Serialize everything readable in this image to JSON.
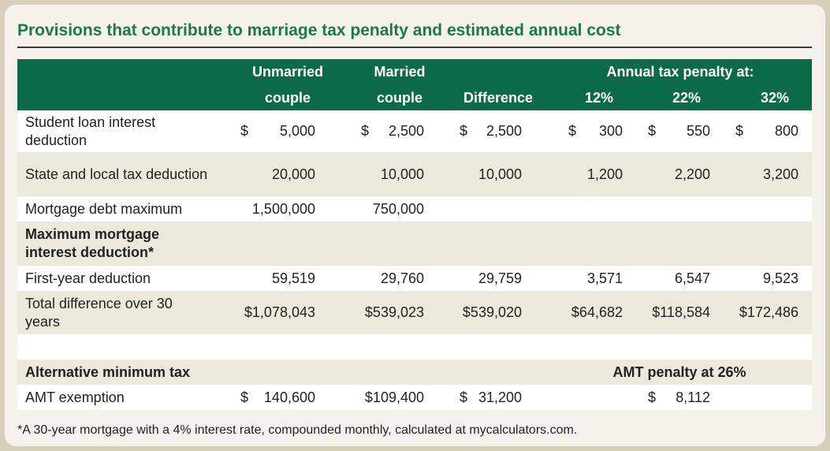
{
  "title": "Provisions that contribute to marriage tax penalty and estimated annual cost",
  "table": {
    "header_top": [
      "Unmarried",
      "Married",
      "Annual tax penalty at:"
    ],
    "header_bottom": [
      "couple",
      "couple",
      "Difference",
      "12%",
      "22%",
      "32%"
    ],
    "rows": [
      {
        "label": "Student loan interest deduction",
        "cells": [
          {
            "sign": "$",
            "amount": "5,000"
          },
          {
            "sign": "$",
            "amount": "2,500"
          },
          {
            "sign": "$",
            "amount": "2,500"
          },
          {
            "sign": "$",
            "amount": "300"
          },
          {
            "sign": "$",
            "amount": "550"
          },
          {
            "sign": "$",
            "amount": "800"
          }
        ]
      },
      {
        "label": "State and local tax deduction",
        "cells": [
          "20,000",
          "10,000",
          "10,000",
          "1,200",
          "2,200",
          "3,200"
        ]
      },
      {
        "label": "Mortgage debt maximum",
        "cells": [
          "1,500,000",
          "750,000",
          null,
          null,
          null,
          null
        ]
      },
      {
        "heading": "Maximum mortgage interest deduction*"
      },
      {
        "label": "First-year deduction",
        "cells": [
          "59,519",
          "29,760",
          "29,759",
          "3,571",
          "6,547",
          "9,523"
        ]
      },
      {
        "label": "Total difference over 30 years",
        "cells": [
          "$1,078,043",
          "$539,023",
          "$539,020",
          "$64,682",
          "$118,584",
          "$172,486"
        ]
      },
      null,
      {
        "heading": "Alternative minimum tax",
        "note": "AMT penalty at 26%"
      },
      {
        "label": "AMT exemption",
        "cells": [
          {
            "sign": "$",
            "amount": "140,600"
          },
          "$109,400",
          {
            "sign": "$",
            "amount": "31,200"
          },
          null,
          {
            "sign": "$",
            "amount": "8,112"
          },
          null
        ]
      }
    ]
  },
  "footnote": "*A 30-year mortgage with a 4% interest rate, compounded monthly, calculated at mycalculators.com."
}
